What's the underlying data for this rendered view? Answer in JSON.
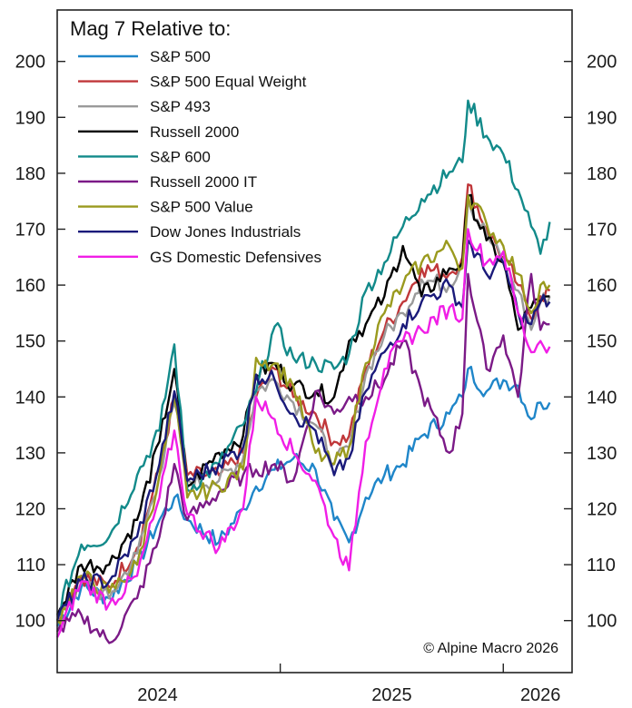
{
  "chart_data": {
    "type": "line",
    "title": "Mag 7 Relative to:",
    "xlabel": "",
    "ylabel": "",
    "x_unit": "months since Jan 2024",
    "xlim": [
      0,
      27.7
    ],
    "ylim": [
      90.7,
      209.2
    ],
    "yticks": [
      100,
      110,
      120,
      130,
      140,
      150,
      160,
      170,
      180,
      190,
      200
    ],
    "ytick_labels": [
      "100",
      "110",
      "120",
      "130",
      "140",
      "150",
      "160",
      "170",
      "180",
      "190",
      "200"
    ],
    "xtick_positions": [
      12,
      24
    ],
    "xtick_labels": [
      {
        "label": "2024",
        "at": 5.4
      },
      {
        "label": "2025",
        "at": 18.0
      },
      {
        "label": "2026",
        "at": 26.0
      }
    ],
    "grid": false,
    "legend_position": "top-left",
    "credit": "© Alpine Macro 2026",
    "x": [
      0,
      1.3,
      2.8,
      4.3,
      5.5,
      6.3,
      7.0,
      8.7,
      10.0,
      10.7,
      11.7,
      12.7,
      13.9,
      14.9,
      15.7,
      16.6,
      17.6,
      18.6,
      19.6,
      21.1,
      21.8,
      22.1,
      23.1,
      24.0,
      24.8,
      25.5,
      26.0,
      26.5
    ],
    "series": [
      {
        "name": "S&P 500",
        "color": "#1f86c9",
        "values": [
          99,
          106,
          104,
          110,
          118,
          122,
          118,
          114,
          120,
          124,
          127,
          129,
          127,
          118,
          114,
          122,
          126,
          128,
          133,
          137,
          140,
          145,
          141,
          143,
          142,
          136,
          139,
          139
        ]
      },
      {
        "name": "S&P 500 Equal Weight",
        "color": "#c0373a",
        "values": [
          101,
          108,
          106,
          113,
          127,
          140,
          126,
          126,
          130,
          140,
          145,
          140,
          137,
          132,
          133,
          145,
          152,
          157,
          163,
          162,
          165,
          178,
          170,
          165,
          160,
          154,
          158,
          159
        ]
      },
      {
        "name": "S&P 493",
        "color": "#9a9a9a",
        "values": [
          100,
          107,
          104,
          112,
          126,
          139,
          125,
          125,
          129,
          141,
          143,
          139,
          135,
          128,
          131,
          144,
          151,
          155,
          161,
          160,
          164,
          175,
          169,
          164,
          159,
          152,
          157,
          158
        ]
      },
      {
        "name": "Russell 2000",
        "color": "#000000",
        "values": [
          101,
          110,
          110,
          118,
          132,
          145,
          124,
          130,
          133,
          144,
          146,
          142,
          141,
          140,
          150,
          153,
          158,
          167,
          158,
          163,
          164,
          176,
          168,
          164,
          152,
          156,
          157,
          158
        ]
      },
      {
        "name": "S&P 600",
        "color": "#128a8a",
        "values": [
          101,
          113.6,
          115,
          126,
          134,
          149.4,
          123.4,
          128,
          135,
          141,
          152.6,
          147,
          146,
          145,
          147.7,
          159,
          164,
          170.5,
          175.4,
          180.2,
          182,
          193,
          186.7,
          183.4,
          177,
          170.5,
          165.6,
          171.3
        ]
      },
      {
        "name": "Russell 2000 IT",
        "color": "#7b1a87",
        "values": [
          98,
          101,
          96,
          104,
          115,
          128,
          118,
          123,
          126,
          127,
          128,
          125,
          141,
          137,
          140,
          140,
          143,
          150,
          141,
          130,
          137,
          162,
          145,
          151,
          140,
          162,
          152,
          153
        ]
      },
      {
        "name": "S&P 500 Value",
        "color": "#9a9a1e",
        "values": [
          100,
          108,
          105,
          110,
          126,
          140,
          122,
          124,
          127,
          147,
          146,
          142,
          130,
          128,
          131,
          146,
          155,
          160,
          164,
          167,
          163,
          176,
          171,
          167,
          162,
          155,
          160,
          160
        ]
      },
      {
        "name": "Dow Jones Industrials",
        "color": "#1a1a7a",
        "values": [
          100,
          107,
          107,
          115,
          128,
          141,
          125,
          128,
          131,
          144,
          143,
          137,
          134,
          126,
          129,
          141,
          148,
          153,
          157,
          160,
          156,
          168,
          162,
          164,
          155,
          153,
          157,
          157
        ]
      },
      {
        "name": "GS Domestic Defensives",
        "color": "#f01ee6",
        "values": [
          97,
          107,
          103,
          108,
          122,
          134,
          119,
          113,
          120,
          140,
          136,
          130,
          125,
          115,
          109,
          132,
          145,
          150,
          152,
          156,
          154,
          170,
          164,
          166,
          155,
          148,
          150,
          149
        ]
      }
    ]
  }
}
